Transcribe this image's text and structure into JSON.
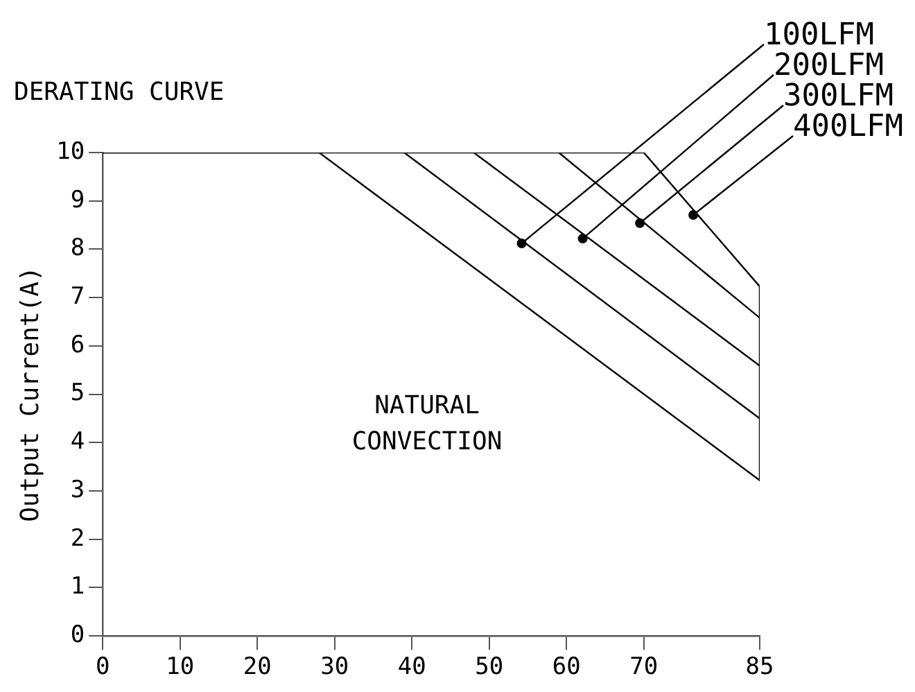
{
  "chart_data": {
    "type": "line",
    "title": "DERATING CURVE",
    "ylabel": "Output Current(A)",
    "series": [
      {
        "color": "#000000",
        "x": [
          0,
          28,
          85
        ],
        "values": [
          10,
          10,
          3.22
        ]
      },
      {
        "color": "#000000",
        "x": [
          39,
          85
        ],
        "values": [
          10,
          4.5
        ]
      },
      {
        "color": "#000000",
        "x": [
          48,
          85
        ],
        "values": [
          10,
          5.59
        ]
      },
      {
        "color": "#000000",
        "x": [
          59,
          85
        ],
        "values": [
          10,
          6.58
        ]
      },
      {
        "color": "#000000",
        "x": [
          0,
          70,
          85,
          85
        ],
        "values": [
          10,
          10,
          7.23,
          3.22
        ]
      }
    ],
    "xlim": [
      0,
      85
    ],
    "xticks": [
      0,
      10,
      20,
      30,
      40,
      50,
      60,
      70,
      85
    ],
    "ylim": [
      0,
      10
    ],
    "yticks": [
      0,
      1,
      2,
      3,
      4,
      5,
      6,
      7,
      8,
      9,
      10
    ],
    "grid": false,
    "legend": false,
    "marker": "none",
    "line_style": "solid",
    "annotations": [
      {
        "text": "100LFM",
        "x": 54.2,
        "y": 8.12
      },
      {
        "text": "200LFM",
        "x": 62.1,
        "y": 8.22
      },
      {
        "text": "300LFM",
        "x": 69.5,
        "y": 8.54
      },
      {
        "text": "400LFM",
        "x": 76.4,
        "y": 8.71
      },
      "NATURAL CONVECTION"
    ]
  }
}
